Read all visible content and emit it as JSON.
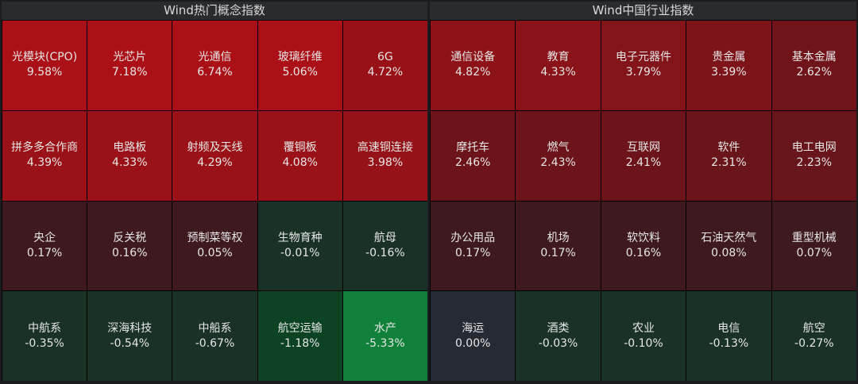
{
  "panels": [
    {
      "title": "Wind热门概念指数",
      "cells": [
        {
          "name": "光模块(CPO)",
          "pct": "9.58%",
          "color": "#ab1016"
        },
        {
          "name": "光芯片",
          "pct": "7.18%",
          "color": "#ab1016"
        },
        {
          "name": "光通信",
          "pct": "6.74%",
          "color": "#ab1016"
        },
        {
          "name": "玻璃纤维",
          "pct": "5.06%",
          "color": "#ab1016"
        },
        {
          "name": "6G",
          "pct": "4.72%",
          "color": "#9a1017"
        },
        {
          "name": "拼多多合作商",
          "pct": "4.39%",
          "color": "#9a1218"
        },
        {
          "name": "电路板",
          "pct": "4.33%",
          "color": "#9a1218"
        },
        {
          "name": "射频及天线",
          "pct": "4.29%",
          "color": "#9a1218"
        },
        {
          "name": "覆铜板",
          "pct": "4.08%",
          "color": "#9a1218"
        },
        {
          "name": "高速铜连接",
          "pct": "3.98%",
          "color": "#951218"
        },
        {
          "name": "央企",
          "pct": "0.17%",
          "color": "#3e1a1f"
        },
        {
          "name": "反关税",
          "pct": "0.16%",
          "color": "#3e1a1f"
        },
        {
          "name": "预制菜等权",
          "pct": "0.05%",
          "color": "#3e1a1f"
        },
        {
          "name": "生物育种",
          "pct": "-0.01%",
          "color": "#193126"
        },
        {
          "name": "航母",
          "pct": "-0.16%",
          "color": "#193126"
        },
        {
          "name": "中航系",
          "pct": "-0.35%",
          "color": "#193126"
        },
        {
          "name": "深海科技",
          "pct": "-0.54%",
          "color": "#193126"
        },
        {
          "name": "中船系",
          "pct": "-0.67%",
          "color": "#193126"
        },
        {
          "name": "航空运输",
          "pct": "-1.18%",
          "color": "#0c4322"
        },
        {
          "name": "水产",
          "pct": "-5.33%",
          "color": "#10813a"
        }
      ]
    },
    {
      "title": "Wind中国行业指数",
      "cells": [
        {
          "name": "通信设备",
          "pct": "4.82%",
          "color": "#8e1319"
        },
        {
          "name": "教育",
          "pct": "4.33%",
          "color": "#8a1319"
        },
        {
          "name": "电子元器件",
          "pct": "3.79%",
          "color": "#831419"
        },
        {
          "name": "贵金属",
          "pct": "3.39%",
          "color": "#7d1419"
        },
        {
          "name": "基本金属",
          "pct": "2.62%",
          "color": "#70141a"
        },
        {
          "name": "摩托车",
          "pct": "2.46%",
          "color": "#6d141a"
        },
        {
          "name": "燃气",
          "pct": "2.43%",
          "color": "#6d141a"
        },
        {
          "name": "互联网",
          "pct": "2.41%",
          "color": "#6c141a"
        },
        {
          "name": "软件",
          "pct": "2.31%",
          "color": "#6a151a"
        },
        {
          "name": "电工电网",
          "pct": "2.23%",
          "color": "#68151b"
        },
        {
          "name": "办公用品",
          "pct": "0.17%",
          "color": "#3e1a1f"
        },
        {
          "name": "机场",
          "pct": "0.17%",
          "color": "#3e1a1f"
        },
        {
          "name": "软饮料",
          "pct": "0.16%",
          "color": "#3e1a1f"
        },
        {
          "name": "石油天然气",
          "pct": "0.08%",
          "color": "#3e1a1f"
        },
        {
          "name": "重型机械",
          "pct": "0.07%",
          "color": "#3e1a1f"
        },
        {
          "name": "海运",
          "pct": "0.00%",
          "color": "#252a33"
        },
        {
          "name": "酒类",
          "pct": "-0.03%",
          "color": "#193126"
        },
        {
          "name": "农业",
          "pct": "-0.10%",
          "color": "#193126"
        },
        {
          "name": "电信",
          "pct": "-0.13%",
          "color": "#193126"
        },
        {
          "name": "航空",
          "pct": "-0.27%",
          "color": "#193126"
        }
      ]
    }
  ]
}
